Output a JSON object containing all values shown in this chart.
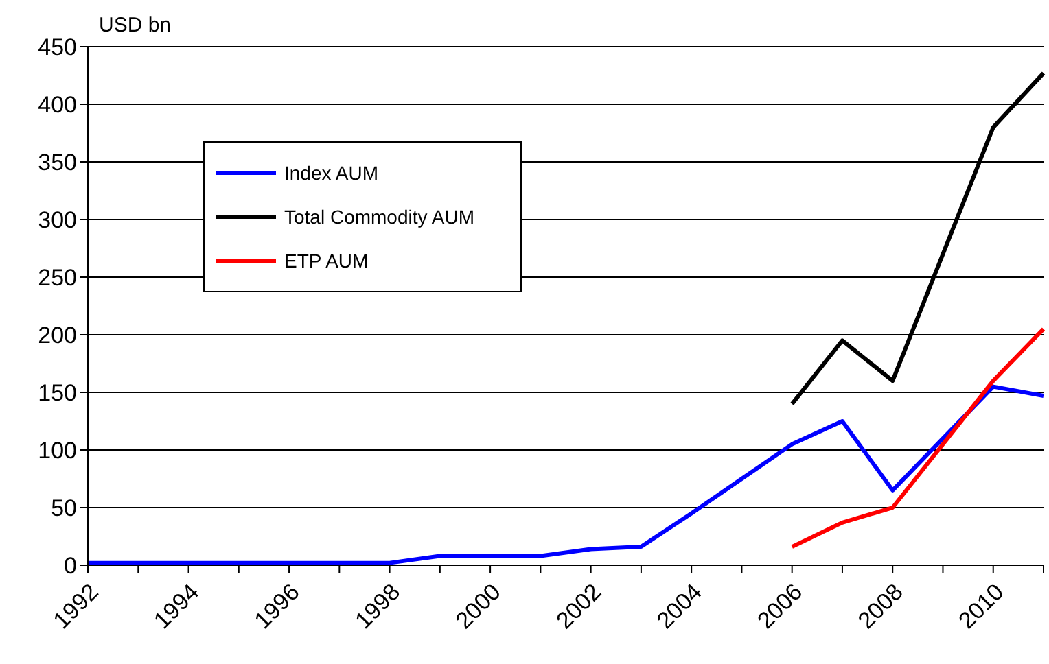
{
  "chart_data": {
    "type": "line",
    "ylabel": "USD bn",
    "categories": [
      "1992",
      null,
      "1994",
      null,
      "1996",
      null,
      "1998",
      null,
      "2000",
      null,
      "2002",
      null,
      "2004",
      null,
      "2006",
      null,
      "2008",
      null,
      "2010",
      null
    ],
    "series": [
      {
        "name": "Index AUM",
        "color": "#0000ff",
        "values": [
          2,
          2,
          2,
          2,
          2,
          2,
          2,
          8,
          8,
          8,
          14,
          16,
          45,
          75,
          105,
          125,
          65,
          110,
          155,
          147
        ]
      },
      {
        "name": "Total Commodity AUM",
        "color": "#000000",
        "values": [
          null,
          null,
          null,
          null,
          null,
          null,
          null,
          null,
          null,
          null,
          null,
          null,
          null,
          null,
          140,
          195,
          160,
          270,
          380,
          427
        ]
      },
      {
        "name": "ETP AUM",
        "color": "#ff0000",
        "values": [
          null,
          null,
          null,
          null,
          null,
          null,
          null,
          null,
          null,
          null,
          null,
          null,
          null,
          null,
          16,
          37,
          50,
          105,
          160,
          205
        ]
      }
    ],
    "ylim": [
      0,
      450
    ],
    "yticks": [
      0,
      50,
      100,
      150,
      200,
      250,
      300,
      350,
      400,
      450
    ],
    "grid": "y",
    "legend": "top left",
    "marker": "none",
    "line_style": "solid"
  }
}
